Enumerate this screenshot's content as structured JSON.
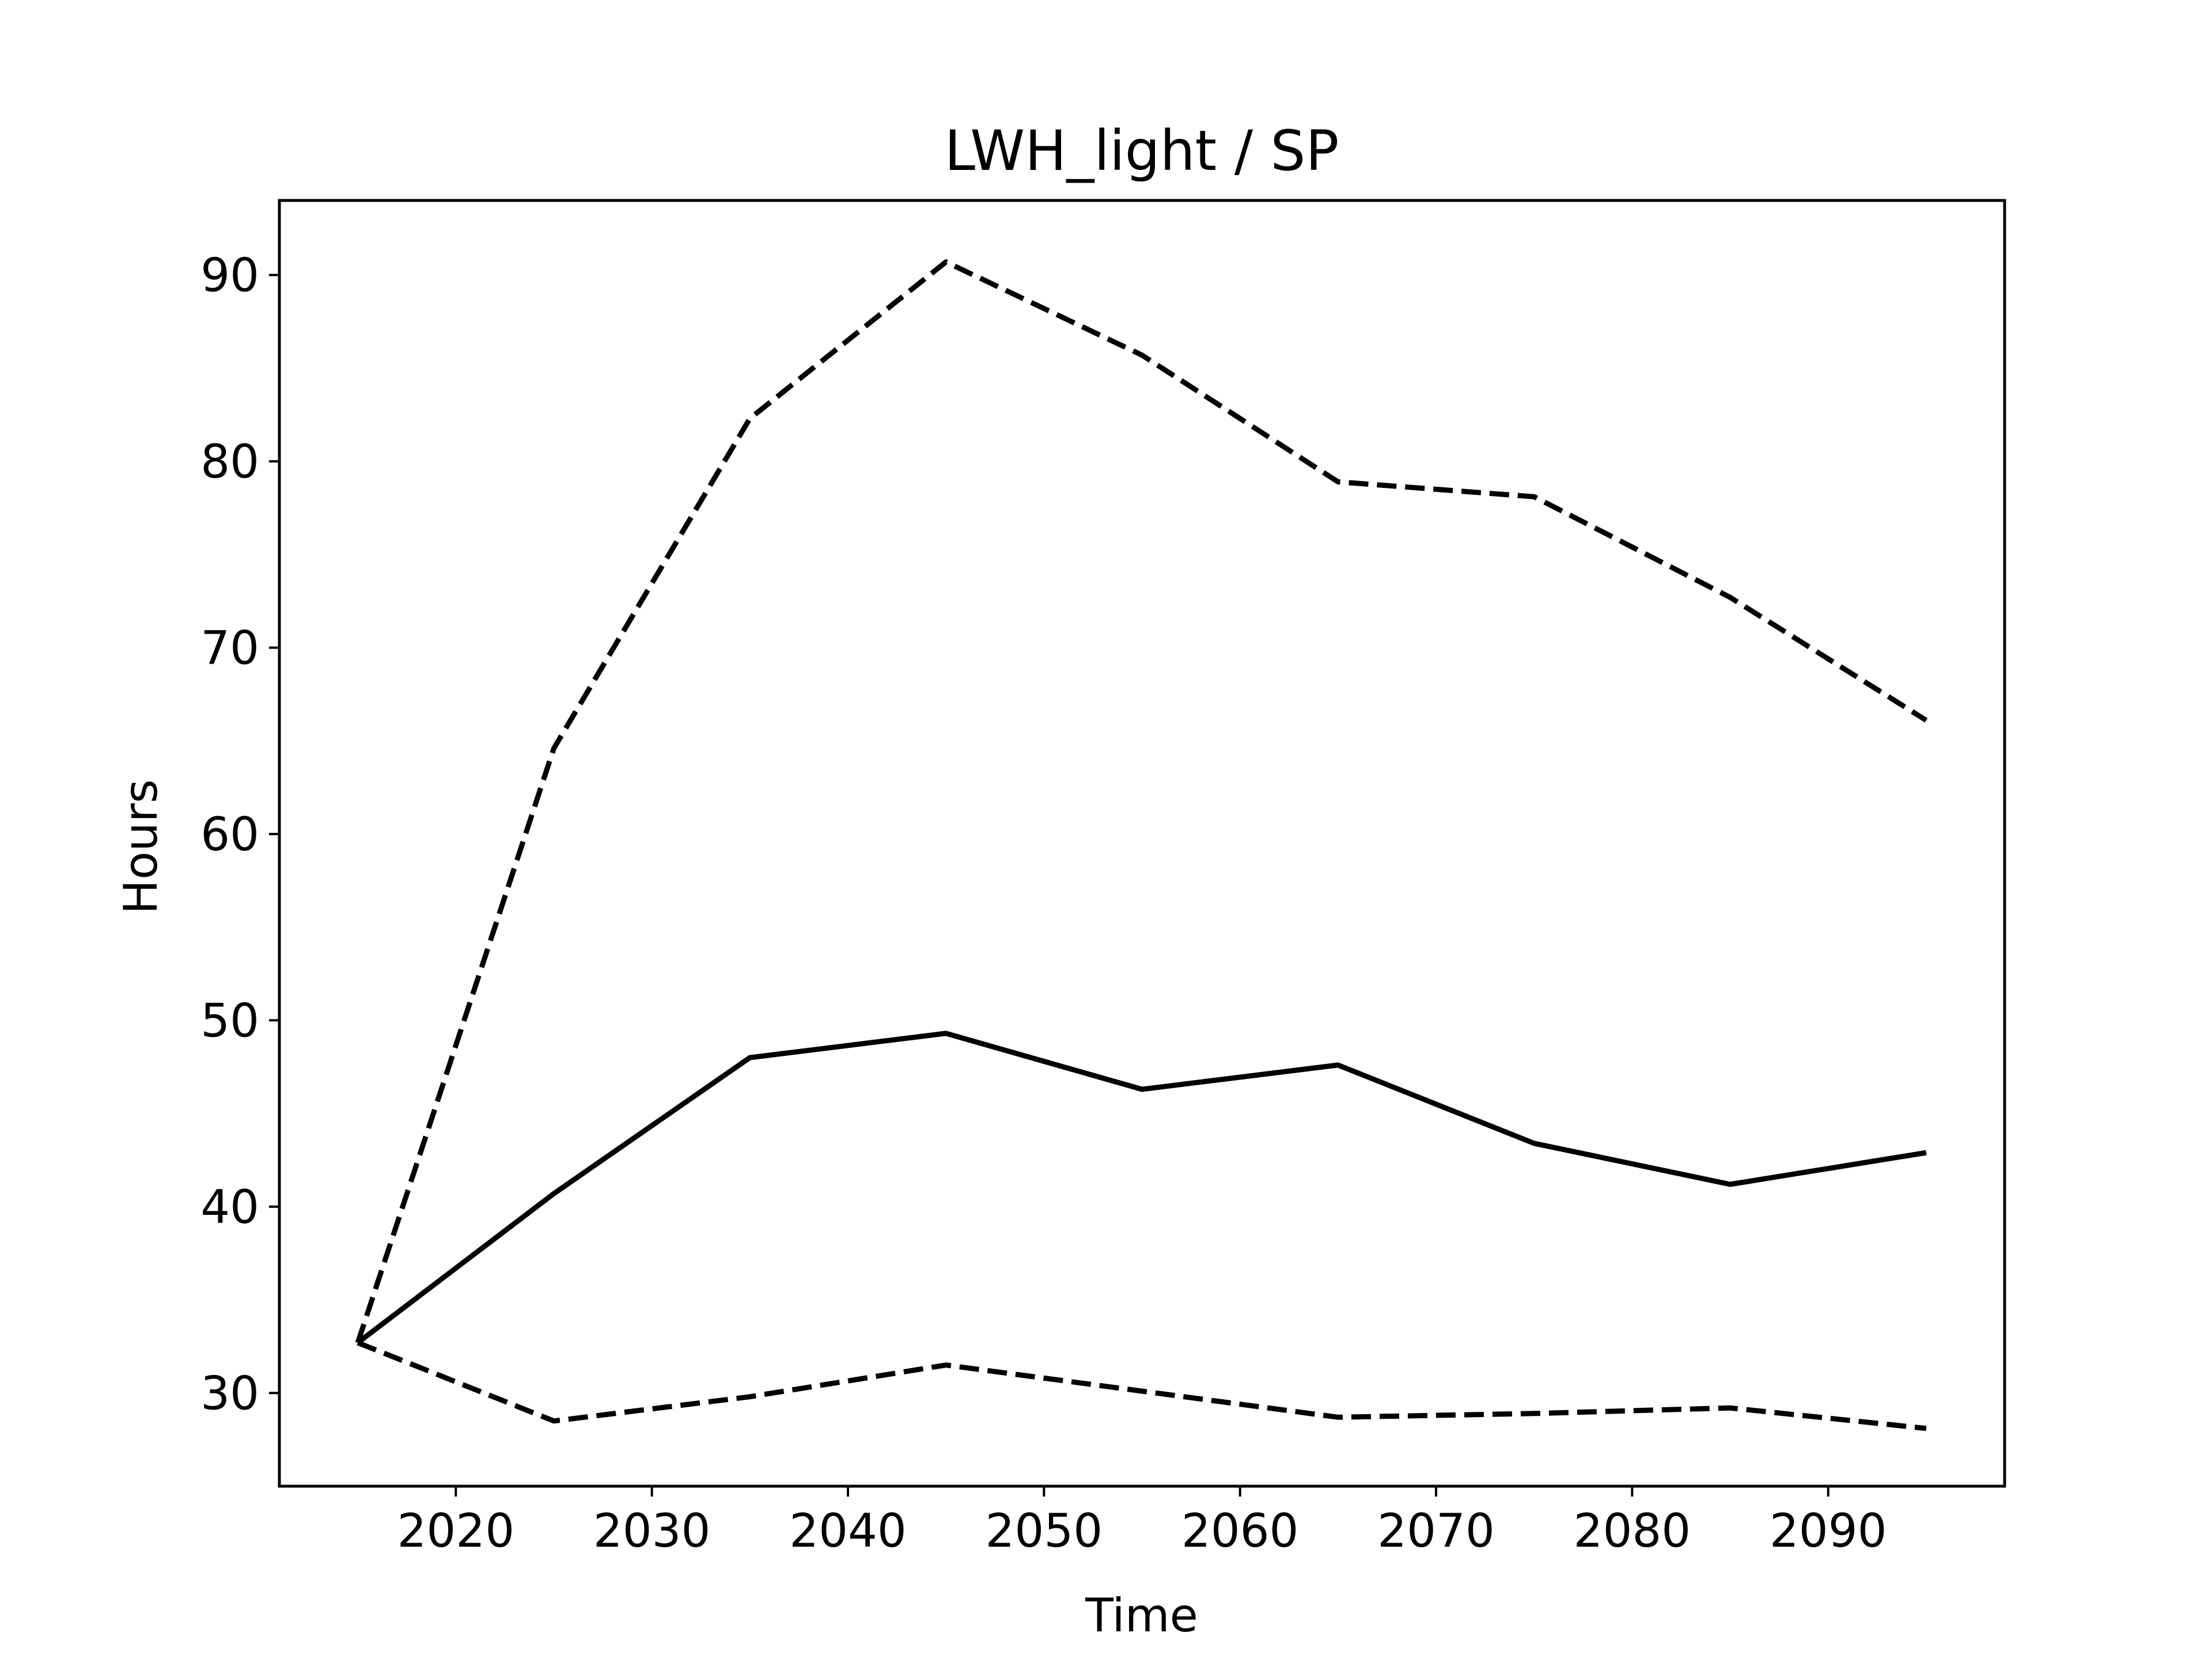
{
  "chart_data": {
    "type": "line",
    "title": "LWH_light / SP",
    "xlabel": "Time",
    "ylabel": "Hours",
    "xlim": [
      2011,
      2099
    ],
    "ylim": [
      25,
      94
    ],
    "xticks": [
      2020,
      2030,
      2040,
      2050,
      2060,
      2070,
      2080,
      2090
    ],
    "yticks": [
      30,
      40,
      50,
      60,
      70,
      80,
      90
    ],
    "grid": false,
    "legend": "none",
    "x": [
      2015,
      2025,
      2035,
      2045,
      2055,
      2065,
      2075,
      2085,
      2095
    ],
    "series": [
      {
        "style": "solid",
        "color": "#000000",
        "values": [
          32.7,
          40.7,
          48.0,
          49.3,
          46.3,
          47.6,
          43.4,
          41.2,
          42.9
        ]
      },
      {
        "style": "dashed",
        "color": "#000000",
        "values": [
          32.7,
          64.6,
          82.3,
          90.7,
          85.7,
          78.9,
          78.1,
          72.7,
          66.1
        ]
      },
      {
        "style": "dashed",
        "color": "#000000",
        "values": [
          32.7,
          28.5,
          29.8,
          31.5,
          30.1,
          28.7,
          28.9,
          29.2,
          28.1
        ]
      }
    ]
  }
}
